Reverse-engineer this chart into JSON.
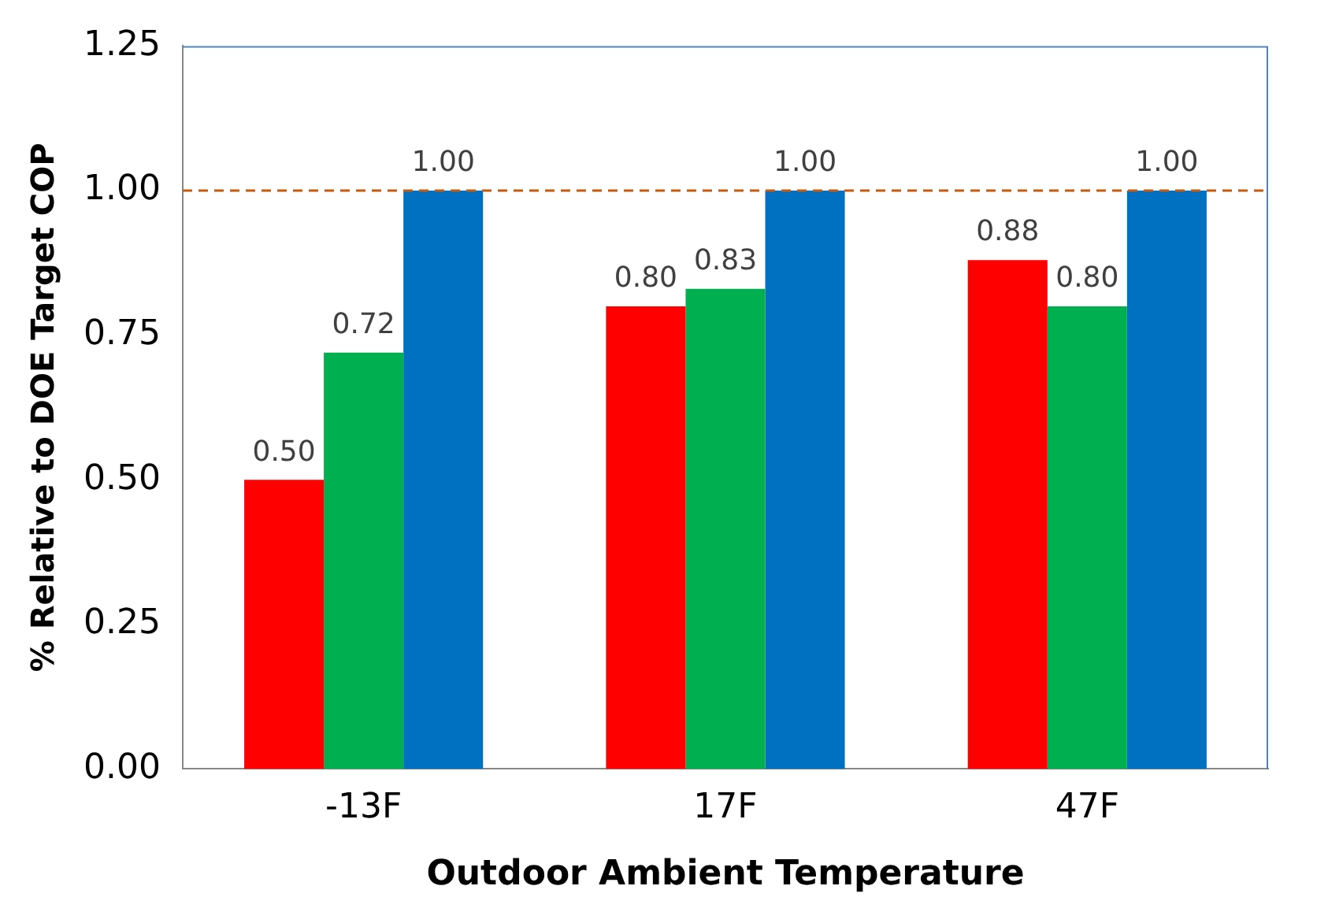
{
  "chart_data": {
    "type": "bar",
    "xlabel": "Outdoor Ambient Temperature",
    "ylabel": "% Relative to DOE Target COP",
    "categories": [
      "-13F",
      "17F",
      "47F"
    ],
    "series": [
      {
        "color": "#ff0000",
        "values": [
          0.5,
          0.8,
          0.88
        ],
        "value_labels": [
          "0.50",
          "0.80",
          "0.88"
        ]
      },
      {
        "color": "#00b050",
        "values": [
          0.72,
          0.83,
          0.8
        ],
        "value_labels": [
          "0.72",
          "0.83",
          "0.80"
        ]
      },
      {
        "color": "#0070c0",
        "values": [
          1.0,
          1.0,
          1.0
        ],
        "value_labels": [
          "1.00",
          "1.00",
          "1.00"
        ]
      }
    ],
    "ylim": [
      0,
      1.25
    ],
    "yticks": [
      {
        "value": 0,
        "label": "0.00"
      },
      {
        "value": 0.25,
        "label": "0.25"
      },
      {
        "value": 0.5,
        "label": "0.50"
      },
      {
        "value": 0.75,
        "label": "0.75"
      },
      {
        "value": 1,
        "label": "1.00"
      },
      {
        "value": 1.25,
        "label": "1.25"
      }
    ],
    "ref_lines": [
      {
        "axis": "y",
        "value": 1,
        "color": "#c55a11",
        "line_style": "dashed"
      }
    ],
    "grid": false,
    "legend": false
  }
}
